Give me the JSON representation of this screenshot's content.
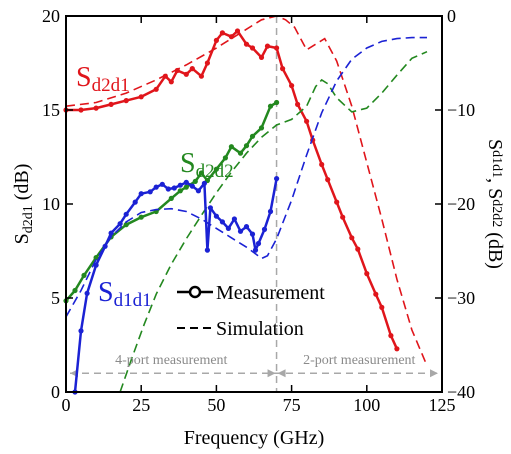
{
  "chart_data": {
    "type": "line",
    "xlabel": "Frequency (GHz)",
    "ylabel_left": {
      "main": "S",
      "sub": "d2d1",
      "rest": " (dB)"
    },
    "ylabel_right": {
      "main1": "S",
      "sub1": "d1d1",
      "mid": ", S",
      "sub2": "d2d2",
      "rest": " (dB)"
    },
    "xlim": [
      0,
      125
    ],
    "ylim_left": [
      0,
      20
    ],
    "ylim_right": [
      -40,
      0
    ],
    "x_ticks": [
      0,
      25,
      50,
      75,
      100,
      125
    ],
    "y_left_ticks": [
      0,
      5,
      10,
      15,
      20
    ],
    "y_right_ticks": [
      -40,
      -30,
      -20,
      -10,
      0
    ],
    "x_tick_labels": [
      "0",
      "25",
      "50",
      "75",
      "100",
      "125"
    ],
    "y_left_tick_labels": [
      "0",
      "5",
      "10",
      "15",
      "20"
    ],
    "y_right_tick_labels": [
      "−40",
      "−30",
      "−20",
      "−10",
      "0"
    ],
    "colors": {
      "sd2d1": "#e0151b",
      "sd2d2": "#23881f",
      "sd1d1": "#1b22d4",
      "divider": "#a8a8a8"
    },
    "series": [
      {
        "name": "S_d2d1",
        "label_main": "S",
        "label_sub": "d2d1",
        "axis": "left",
        "color": "#e0151b",
        "measurement": {
          "x": [
            0,
            5,
            10,
            15,
            20,
            25,
            30,
            33,
            35,
            37,
            40,
            42,
            45,
            47,
            50,
            52,
            55,
            57,
            60,
            62,
            65,
            67,
            70,
            72,
            75,
            77,
            80,
            82,
            85,
            87,
            90,
            92,
            95,
            97,
            100,
            103,
            105,
            108,
            110
          ],
          "y": [
            15.0,
            15.0,
            15.1,
            15.3,
            15.5,
            15.7,
            16.1,
            16.8,
            16.5,
            17.1,
            16.9,
            17.2,
            16.8,
            17.5,
            18.7,
            19.1,
            18.9,
            19.2,
            18.5,
            18.3,
            17.8,
            18.4,
            18.3,
            17.2,
            16.3,
            15.3,
            14.4,
            13.4,
            12.1,
            11.3,
            10.1,
            9.3,
            8.2,
            7.6,
            6.3,
            5.2,
            4.5,
            3.0,
            2.3
          ]
        },
        "simulation": {
          "x": [
            0,
            10,
            20,
            30,
            40,
            50,
            60,
            65,
            70,
            73,
            76,
            80,
            83,
            86,
            90,
            95,
            100,
            105,
            110,
            115,
            120
          ],
          "y": [
            15.2,
            15.4,
            15.9,
            16.6,
            17.4,
            18.3,
            19.3,
            19.8,
            20.0,
            19.8,
            19.4,
            18.2,
            18.5,
            18.8,
            17.6,
            15.2,
            12.2,
            9.2,
            6.0,
            3.3,
            1.4
          ]
        }
      },
      {
        "name": "S_d2d2",
        "label_main": "S",
        "label_sub": "d2d2",
        "axis": "right",
        "color": "#23881f",
        "measurement": {
          "x": [
            0,
            3,
            6,
            10,
            15,
            20,
            25,
            30,
            35,
            38,
            40,
            43,
            45,
            47,
            50,
            53,
            55,
            58,
            60,
            62,
            65,
            68,
            70
          ],
          "y": [
            -30.3,
            -29.2,
            -27.6,
            -25.7,
            -23.5,
            -22.2,
            -21.4,
            -20.8,
            -19.4,
            -18.6,
            -18.2,
            -17.6,
            -16.7,
            -17.5,
            -16.3,
            -15.1,
            -13.9,
            -14.6,
            -13.8,
            -12.8,
            -11.9,
            -9.6,
            -9.2
          ]
        },
        "simulation": {
          "x": [
            18,
            22,
            26,
            30,
            35,
            40,
            45,
            50,
            55,
            60,
            65,
            70,
            75,
            80,
            83,
            85,
            87,
            90,
            95,
            100,
            105,
            110,
            115,
            120
          ],
          "y": [
            -40,
            -36.3,
            -32.8,
            -29.6,
            -26.4,
            -23.7,
            -21.2,
            -18.8,
            -16.6,
            -14.6,
            -12.9,
            -11.6,
            -11.0,
            -9.6,
            -7.5,
            -6.8,
            -7.2,
            -8.7,
            -10.2,
            -9.8,
            -8.2,
            -6.3,
            -4.5,
            -3.8
          ]
        }
      },
      {
        "name": "S_d1d1",
        "label_main": "S",
        "label_sub": "d1d1",
        "axis": "right",
        "color": "#1b22d4",
        "measurement": {
          "x": [
            3,
            5,
            7,
            10,
            13,
            15,
            18,
            20,
            23,
            25,
            28,
            30,
            32,
            34,
            36,
            38,
            40,
            42,
            44,
            46,
            47,
            48,
            50,
            52,
            54,
            56,
            58,
            60,
            62,
            63,
            64,
            66,
            68,
            70
          ],
          "y": [
            -40,
            -33.5,
            -29.5,
            -26.5,
            -24.5,
            -23.1,
            -22.1,
            -21.1,
            -19.8,
            -18.9,
            -18.7,
            -18.2,
            -17.9,
            -18.4,
            -18.3,
            -18.0,
            -17.7,
            -18.1,
            -18.6,
            -17.8,
            -24.9,
            -20.4,
            -21.3,
            -21.9,
            -22.6,
            -21.6,
            -22.9,
            -22.4,
            -23.2,
            -24.9,
            -24.2,
            -22.7,
            -20.8,
            -17.3
          ]
        },
        "simulation": {
          "x": [
            0,
            5,
            10,
            15,
            20,
            25,
            30,
            35,
            40,
            45,
            50,
            55,
            60,
            63,
            65,
            67,
            70,
            75,
            80,
            85,
            90,
            95,
            100,
            105,
            110,
            115,
            120
          ],
          "y": [
            -32.0,
            -29.2,
            -25.9,
            -23.5,
            -21.9,
            -20.9,
            -20.6,
            -20.5,
            -20.8,
            -21.6,
            -22.6,
            -23.6,
            -24.6,
            -25.3,
            -25.8,
            -25.5,
            -23.7,
            -19.6,
            -14.8,
            -10.3,
            -6.9,
            -4.6,
            -3.4,
            -2.7,
            -2.4,
            -2.3,
            -2.3
          ]
        }
      }
    ],
    "legend": {
      "measurement": "Measurement",
      "simulation": "Simulation"
    },
    "annotations": {
      "divider_x": 70,
      "measurement_level": -38,
      "left_region": "4-port measurement",
      "right_region": "2-port measurement"
    }
  }
}
